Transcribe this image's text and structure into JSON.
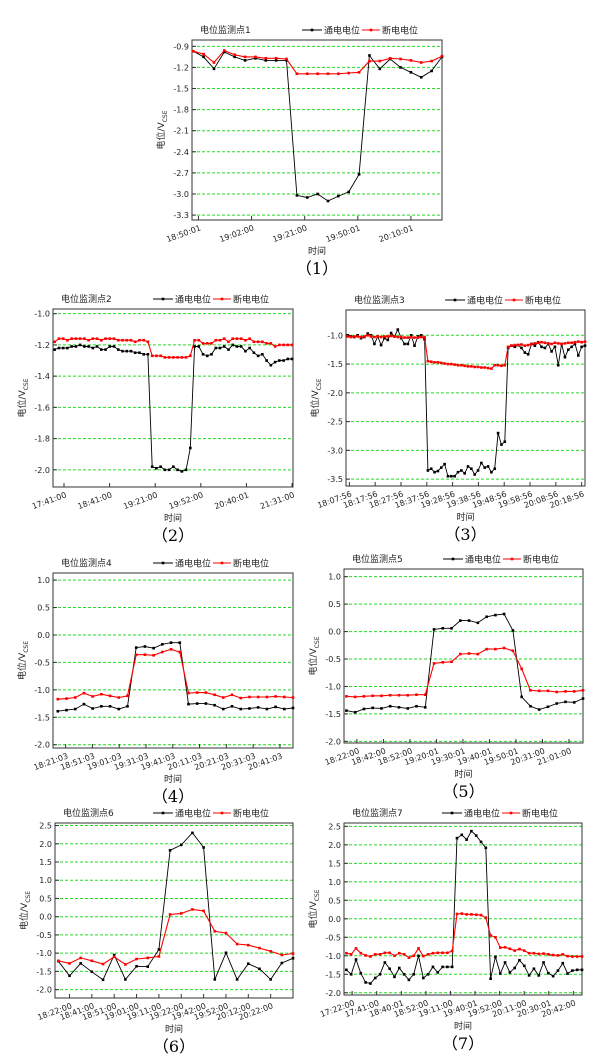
{
  "legend": {
    "on_label": "通电电位",
    "off_label": "断电电位"
  },
  "colors": {
    "on": "#000000",
    "off": "#ff0000",
    "grid": "#22dd22",
    "frame": "#333333"
  },
  "chart_data": [
    {
      "type": "line",
      "title": "电位监测点1",
      "caption": "（1）",
      "xlabel": "时间",
      "ylabel": "电位/V",
      "ylabel_sub": "CSE",
      "ylim": [
        -3.37,
        -0.81
      ],
      "yticks": [
        -0.9,
        -1.2,
        -1.5,
        -1.8,
        -2.1,
        -2.4,
        -2.7,
        -3.0,
        -3.3
      ],
      "x_ticks": [
        "18:50:01",
        "19:02:00",
        "19:21:00",
        "19:50:01",
        "20:10:01"
      ],
      "grid": true,
      "legend_position": "top-right",
      "series": [
        {
          "name": "通电电位",
          "values": [
            -0.97,
            -1.05,
            -1.22,
            -0.98,
            -1.05,
            -1.1,
            -1.07,
            -1.1,
            -1.1,
            -1.1,
            -3.02,
            -3.05,
            -3.0,
            -3.1,
            -3.03,
            -2.97,
            -2.72,
            -1.03,
            -1.22,
            -1.08,
            -1.2,
            -1.27,
            -1.34,
            -1.25,
            -1.05
          ]
        },
        {
          "name": "断电电位",
          "values": [
            -0.97,
            -1.01,
            -1.13,
            -0.96,
            -1.02,
            -1.05,
            -1.05,
            -1.07,
            -1.07,
            -1.08,
            -1.29,
            -1.29,
            -1.29,
            -1.29,
            -1.29,
            -1.28,
            -1.27,
            -1.11,
            -1.11,
            -1.07,
            -1.08,
            -1.1,
            -1.13,
            -1.11,
            -1.04
          ]
        }
      ]
    },
    {
      "type": "line",
      "title": "电位监测点2",
      "caption": "（2）",
      "xlabel": "时间",
      "ylabel": "电位/V",
      "ylabel_sub": "CSE",
      "ylim": [
        -2.11,
        -0.97
      ],
      "yticks": [
        -1.0,
        -1.2,
        -1.4,
        -1.6,
        -1.8,
        -2.0
      ],
      "x_ticks": [
        "17:41:00",
        "18:41:00",
        "19:21:00",
        "19:52:00",
        "20:40:01",
        "21:31:00"
      ],
      "grid": true,
      "legend_position": "top-right",
      "series": [
        {
          "name": "通电电位",
          "values": [
            -1.23,
            -1.22,
            -1.22,
            -1.22,
            -1.21,
            -1.21,
            -1.2,
            -1.21,
            -1.21,
            -1.22,
            -1.21,
            -1.23,
            -1.23,
            -1.21,
            -1.21,
            -1.23,
            -1.24,
            -1.24,
            -1.24,
            -1.25,
            -1.25,
            -1.26,
            -1.26,
            -1.98,
            -1.99,
            -1.98,
            -2.0,
            -2.0,
            -1.98,
            -2.0,
            -2.01,
            -2.0,
            -1.86,
            -1.21,
            -1.21,
            -1.26,
            -1.27,
            -1.26,
            -1.22,
            -1.22,
            -1.21,
            -1.23,
            -1.2,
            -1.21,
            -1.21,
            -1.24,
            -1.22,
            -1.25,
            -1.27,
            -1.26,
            -1.3,
            -1.33,
            -1.31,
            -1.3,
            -1.3,
            -1.29,
            -1.29
          ]
        },
        {
          "name": "断电电位",
          "values": [
            -1.18,
            -1.16,
            -1.16,
            -1.17,
            -1.16,
            -1.16,
            -1.16,
            -1.16,
            -1.17,
            -1.16,
            -1.16,
            -1.17,
            -1.16,
            -1.16,
            -1.16,
            -1.17,
            -1.17,
            -1.17,
            -1.17,
            -1.18,
            -1.17,
            -1.17,
            -1.18,
            -1.27,
            -1.27,
            -1.27,
            -1.28,
            -1.28,
            -1.28,
            -1.28,
            -1.28,
            -1.28,
            -1.27,
            -1.17,
            -1.17,
            -1.19,
            -1.19,
            -1.19,
            -1.17,
            -1.17,
            -1.16,
            -1.18,
            -1.16,
            -1.16,
            -1.16,
            -1.17,
            -1.16,
            -1.18,
            -1.18,
            -1.18,
            -1.19,
            -1.19,
            -1.21,
            -1.2,
            -1.2,
            -1.2,
            -1.2
          ]
        }
      ]
    },
    {
      "type": "line",
      "title": "电位监测点3",
      "caption": "（3）",
      "xlabel": "时间",
      "ylabel": "电位/V",
      "ylabel_sub": "CSE",
      "ylim": [
        -3.62,
        -0.56
      ],
      "yticks": [
        -1.0,
        -1.5,
        -2.0,
        -2.5,
        -3.0,
        -3.5
      ],
      "x_ticks": [
        "18:07:56",
        "18:17:56",
        "18:27:56",
        "18:37:56",
        "19:28:56",
        "19:38:56",
        "19:48:56",
        "19:58:56",
        "20:08:56",
        "20:18:56"
      ],
      "grid": true,
      "legend_position": "top-right",
      "series": [
        {
          "name": "通电电位",
          "values": [
            -1.0,
            -1.02,
            -1.03,
            -1.0,
            -1.05,
            -1.03,
            -0.97,
            -1.0,
            -1.15,
            -1.02,
            -1.17,
            -1.05,
            -1.08,
            -0.96,
            -1.02,
            -0.9,
            -1.05,
            -1.15,
            -1.15,
            -1.0,
            -1.18,
            -1.02,
            -1.0,
            -1.07,
            -3.35,
            -3.32,
            -3.38,
            -3.36,
            -3.3,
            -3.24,
            -3.45,
            -3.45,
            -3.45,
            -3.38,
            -3.35,
            -3.4,
            -3.28,
            -3.32,
            -3.42,
            -3.35,
            -3.22,
            -3.3,
            -3.28,
            -3.38,
            -3.32,
            -2.7,
            -2.9,
            -2.85,
            -1.22,
            -1.18,
            -1.2,
            -1.17,
            -1.22,
            -1.3,
            -1.33,
            -1.15,
            -1.18,
            -1.12,
            -1.2,
            -1.22,
            -1.15,
            -1.28,
            -1.2,
            -1.52,
            -1.15,
            -1.38,
            -1.25,
            -1.2,
            -1.15,
            -1.35,
            -1.2,
            -1.18
          ]
        },
        {
          "name": "断电电位",
          "values": [
            -1.02,
            -1.03,
            -1.02,
            -1.02,
            -1.03,
            -1.02,
            -1.0,
            -1.02,
            -1.03,
            -1.02,
            -1.03,
            -1.02,
            -1.02,
            -1.01,
            -1.02,
            -1.03,
            -1.03,
            -1.04,
            -1.04,
            -1.03,
            -1.04,
            -1.04,
            -1.03,
            -1.03,
            -1.45,
            -1.46,
            -1.47,
            -1.47,
            -1.48,
            -1.49,
            -1.5,
            -1.5,
            -1.51,
            -1.52,
            -1.52,
            -1.53,
            -1.54,
            -1.54,
            -1.55,
            -1.55,
            -1.56,
            -1.56,
            -1.57,
            -1.58,
            -1.52,
            -1.52,
            -1.53,
            -1.52,
            -1.2,
            -1.18,
            -1.17,
            -1.17,
            -1.16,
            -1.18,
            -1.17,
            -1.15,
            -1.14,
            -1.13,
            -1.12,
            -1.13,
            -1.14,
            -1.15,
            -1.13,
            -1.14,
            -1.15,
            -1.14,
            -1.13,
            -1.13,
            -1.12,
            -1.11,
            -1.12,
            -1.11
          ]
        }
      ]
    },
    {
      "type": "line",
      "title": "电位监测点4",
      "caption": "（4）",
      "xlabel": "时间",
      "ylabel": "电位/V",
      "ylabel_sub": "CSE",
      "ylim": [
        -2.06,
        1.13
      ],
      "yticks": [
        1.0,
        0.5,
        0.0,
        -0.5,
        -1.0,
        -1.5,
        -2.0
      ],
      "x_ticks": [
        "18:21:03",
        "18:51:03",
        "19:01:03",
        "19:31:03",
        "19:41:03",
        "20:11:03",
        "20:21:03",
        "20:31:03",
        "20:41:03"
      ],
      "grid": true,
      "legend_position": "top-right",
      "series": [
        {
          "name": "通电电位",
          "values": [
            -1.39,
            -1.37,
            -1.35,
            -1.26,
            -1.34,
            -1.3,
            -1.3,
            -1.35,
            -1.3,
            -0.23,
            -0.21,
            -0.24,
            -0.17,
            -0.14,
            -0.14,
            -1.26,
            -1.25,
            -1.25,
            -1.28,
            -1.35,
            -1.3,
            -1.35,
            -1.34,
            -1.32,
            -1.35,
            -1.31,
            -1.35,
            -1.33
          ]
        },
        {
          "name": "断电电位",
          "values": [
            -1.17,
            -1.16,
            -1.14,
            -1.06,
            -1.12,
            -1.08,
            -1.11,
            -1.14,
            -1.11,
            -0.36,
            -0.36,
            -0.37,
            -0.31,
            -0.26,
            -0.31,
            -1.06,
            -1.05,
            -1.05,
            -1.09,
            -1.14,
            -1.09,
            -1.15,
            -1.13,
            -1.13,
            -1.13,
            -1.12,
            -1.13,
            -1.14
          ]
        }
      ]
    },
    {
      "type": "line",
      "title": "电位监测点5",
      "caption": "（5）",
      "xlabel": "时间",
      "ylabel": "电位/V",
      "ylabel_sub": "CSE",
      "ylim": [
        -2.03,
        1.14
      ],
      "yticks": [
        1.0,
        0.5,
        0.0,
        -0.5,
        -1.0,
        -1.5,
        -2.0
      ],
      "x_ticks": [
        "18:22:00",
        "18:42:00",
        "18:52:00",
        "19:20:01",
        "19:30:01",
        "19:40:01",
        "19:50:01",
        "20:31:00",
        "21:01:00"
      ],
      "grid": true,
      "legend_position": "top-right",
      "series": [
        {
          "name": "通电电位",
          "values": [
            -1.44,
            -1.47,
            -1.41,
            -1.39,
            -1.4,
            -1.36,
            -1.38,
            -1.4,
            -1.36,
            -1.38,
            0.04,
            0.06,
            0.06,
            0.2,
            0.2,
            0.16,
            0.27,
            0.3,
            0.32,
            0.02,
            -1.19,
            -1.36,
            -1.42,
            -1.37,
            -1.31,
            -1.28,
            -1.29,
            -1.22
          ]
        },
        {
          "name": "断电电位",
          "values": [
            -1.18,
            -1.19,
            -1.18,
            -1.17,
            -1.17,
            -1.16,
            -1.16,
            -1.16,
            -1.15,
            -1.15,
            -0.58,
            -0.56,
            -0.55,
            -0.41,
            -0.4,
            -0.41,
            -0.32,
            -0.32,
            -0.3,
            -0.35,
            -0.68,
            -1.07,
            -1.08,
            -1.08,
            -1.1,
            -1.09,
            -1.09,
            -1.07
          ]
        }
      ]
    },
    {
      "type": "line",
      "title": "电位监测点6",
      "caption": "（6）",
      "xlabel": "时间",
      "ylabel": "电位/V",
      "ylabel_sub": "CSE",
      "ylim": [
        -2.23,
        2.57
      ],
      "yticks": [
        2.5,
        2.0,
        1.5,
        1.0,
        0.5,
        0.0,
        -0.5,
        -1.0,
        -1.5,
        -2.0
      ],
      "x_ticks": [
        "18:22:00",
        "18:41:00",
        "18:51:00",
        "19:01:00",
        "19:11:00",
        "19:22:00",
        "19:42:00",
        "19:52:00",
        "20:12:00",
        "20:22:00"
      ],
      "grid": true,
      "legend_position": "top-right",
      "series": [
        {
          "name": "通电电位",
          "values": [
            -1.22,
            -1.62,
            -1.28,
            -1.51,
            -1.73,
            -1.05,
            -1.72,
            -1.36,
            -1.37,
            -0.9,
            1.82,
            1.97,
            2.3,
            1.9,
            -1.72,
            -0.99,
            -1.72,
            -1.29,
            -1.43,
            -1.72,
            -1.27,
            -1.14
          ]
        },
        {
          "name": "断电电位",
          "values": [
            -1.21,
            -1.28,
            -1.13,
            -1.21,
            -1.3,
            -1.1,
            -1.31,
            -1.16,
            -1.13,
            -1.09,
            0.06,
            0.09,
            0.2,
            0.16,
            -0.4,
            -0.45,
            -0.75,
            -0.78,
            -0.86,
            -0.95,
            -1.05,
            -1.01
          ]
        }
      ]
    },
    {
      "type": "line",
      "title": "电位监测点7",
      "caption": "（7）",
      "xlabel": "时间",
      "ylabel": "电位/V",
      "ylabel_sub": "CSE",
      "ylim": [
        -2.06,
        2.59
      ],
      "yticks": [
        2.5,
        2.0,
        1.5,
        1.0,
        0.5,
        0.0,
        -0.5,
        -1.0,
        -1.5,
        -2.0
      ],
      "x_ticks": [
        "17:22:00",
        "17:41:00",
        "18:40:01",
        "18:52:00",
        "19:11:00",
        "19:40:01",
        "19:52:00",
        "20:11:00",
        "20:30:01",
        "20:42:00"
      ],
      "grid": true,
      "legend_position": "top-right",
      "series": [
        {
          "name": "通电电位",
          "values": [
            -1.38,
            -1.5,
            -1.1,
            -1.47,
            -1.72,
            -1.75,
            -1.6,
            -1.5,
            -1.18,
            -1.35,
            -1.57,
            -1.33,
            -1.5,
            -1.65,
            -1.5,
            -1.0,
            -1.6,
            -1.5,
            -1.3,
            -1.45,
            -1.3,
            -1.3,
            -1.3,
            2.18,
            2.27,
            2.14,
            2.37,
            2.25,
            2.08,
            1.92,
            -1.62,
            -1.03,
            -1.48,
            -1.18,
            -1.45,
            -1.33,
            -1.12,
            -1.27,
            -1.53,
            -1.35,
            -1.53,
            -1.18,
            -1.47,
            -1.55,
            -1.4,
            -1.2,
            -1.48,
            -1.4,
            -1.38,
            -1.38
          ]
        },
        {
          "name": "断电电位",
          "values": [
            -0.93,
            -0.96,
            -0.8,
            -0.93,
            -0.99,
            -1.02,
            -0.96,
            -0.96,
            -0.92,
            -0.92,
            -1.0,
            -0.93,
            -0.96,
            -1.05,
            -1.0,
            -0.8,
            -1.01,
            -0.96,
            -0.93,
            -0.92,
            -0.92,
            -0.92,
            -0.87,
            0.13,
            0.14,
            0.12,
            0.12,
            0.11,
            0.1,
            0.03,
            -0.45,
            -0.5,
            -0.78,
            -0.77,
            -0.81,
            -0.86,
            -0.82,
            -0.86,
            -0.93,
            -0.93,
            -0.95,
            -0.94,
            -0.96,
            -0.98,
            -0.99,
            -0.96,
            -1.01,
            -1.02,
            -1.02,
            -1.02
          ]
        }
      ]
    }
  ]
}
